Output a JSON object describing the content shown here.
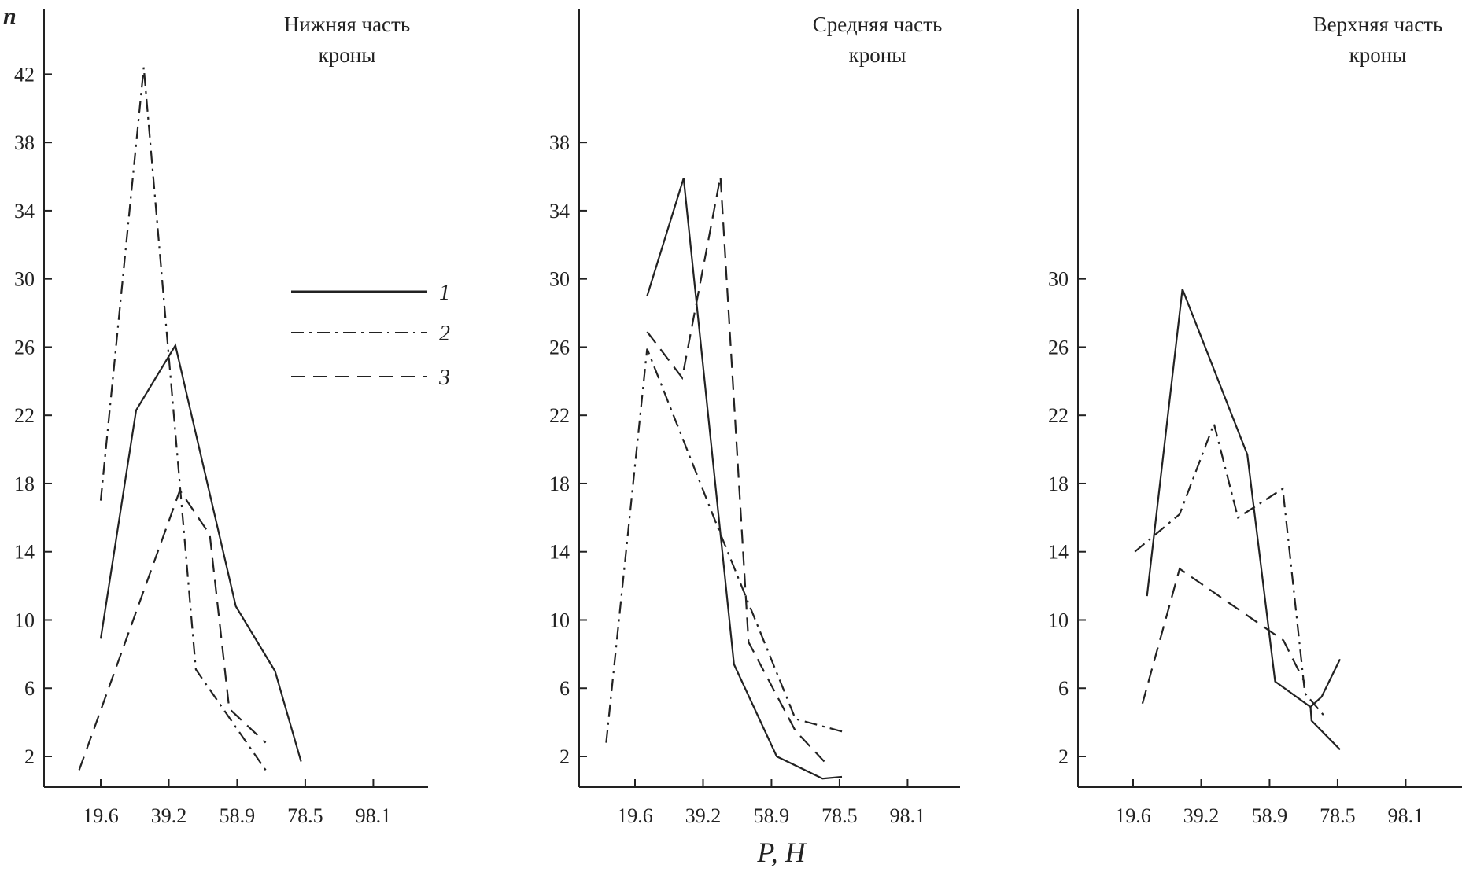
{
  "chart_data": {
    "type": "line",
    "ylabel": "n",
    "xlabel": "P, Н",
    "x_ticks": [
      "19.6",
      "39.2",
      "58.9",
      "78.5",
      "98.1"
    ],
    "x_tick_values": [
      19.6,
      39.2,
      58.9,
      78.5,
      98.1
    ],
    "legend": {
      "placement": "left panel, right-middle",
      "entries": [
        {
          "label": "1",
          "style": "solid"
        },
        {
          "label": "2",
          "style": "dash-dot"
        },
        {
          "label": "3",
          "style": "dashed"
        }
      ]
    },
    "panels": [
      {
        "title": [
          "Нижняя часть",
          "кроны"
        ],
        "y_ticks": [
          2,
          6,
          10,
          14,
          18,
          22,
          26,
          30,
          34,
          38,
          42
        ],
        "series": [
          {
            "name": "1",
            "style": "solid",
            "points": [
              [
                19.6,
                8.9
              ],
              [
                29.8,
                22.3
              ],
              [
                41.1,
                26.1
              ],
              [
                58.5,
                10.8
              ],
              [
                69.8,
                7.0
              ],
              [
                77.3,
                1.7
              ]
            ]
          },
          {
            "name": "2",
            "style": "dash-dot",
            "points": [
              [
                19.6,
                17.0
              ],
              [
                32.0,
                42.4
              ],
              [
                47.0,
                7.1
              ],
              [
                67.1,
                1.2
              ]
            ]
          },
          {
            "name": "3",
            "style": "dashed",
            "points": [
              [
                13.4,
                1.2
              ],
              [
                42.4,
                17.6
              ],
              [
                51.0,
                15.0
              ],
              [
                56.6,
                4.8
              ],
              [
                67.1,
                2.8
              ]
            ]
          }
        ]
      },
      {
        "title": [
          "Средняя часть",
          "кроны"
        ],
        "y_ticks": [
          2,
          6,
          10,
          14,
          18,
          22,
          26,
          30,
          34,
          38
        ],
        "series": [
          {
            "name": "1",
            "style": "solid",
            "points": [
              [
                23.1,
                29.0
              ],
              [
                33.6,
                35.9
              ],
              [
                48.1,
                7.4
              ],
              [
                60.4,
                2.0
              ],
              [
                73.6,
                0.7
              ],
              [
                79.2,
                0.8
              ]
            ]
          },
          {
            "name": "2",
            "style": "dash-dot",
            "points": [
              [
                11.3,
                2.8
              ],
              [
                23.1,
                25.9
              ],
              [
                43.5,
                15.4
              ],
              [
                65.8,
                4.2
              ],
              [
                80.3,
                3.4
              ]
            ]
          },
          {
            "name": "3",
            "style": "dashed",
            "points": [
              [
                23.1,
                26.9
              ],
              [
                33.2,
                24.2
              ],
              [
                44.2,
                36.0
              ],
              [
                52.3,
                8.7
              ],
              [
                65.8,
                3.5
              ],
              [
                74.1,
                1.7
              ]
            ]
          }
        ]
      },
      {
        "title": [
          "Верхняя часть",
          "кроны"
        ],
        "y_ticks": [
          2,
          6,
          10,
          14,
          18,
          22,
          26,
          30
        ],
        "series": [
          {
            "name": "1",
            "style": "solid",
            "points": [
              [
                23.6,
                11.4
              ],
              [
                33.8,
                29.4
              ],
              [
                52.5,
                19.7
              ],
              [
                60.5,
                6.4
              ],
              [
                70.7,
                4.9
              ],
              [
                71.0,
                4.1
              ],
              [
                79.2,
                2.4
              ]
            ]
          },
          {
            "name": "1",
            "style": "solid",
            "points": [
              [
                70.7,
                4.9
              ],
              [
                73.9,
                5.5
              ],
              [
                79.2,
                7.7
              ]
            ]
          },
          {
            "name": "2",
            "style": "dash-dot",
            "points": [
              [
                20.1,
                14.0
              ],
              [
                33.0,
                16.2
              ],
              [
                42.9,
                21.5
              ],
              [
                49.8,
                16.0
              ],
              [
                62.7,
                17.7
              ],
              [
                69.1,
                5.7
              ],
              [
                75.4,
                4.2
              ]
            ]
          },
          {
            "name": "3",
            "style": "dashed",
            "points": [
              [
                22.3,
                5.1
              ],
              [
                33.0,
                13.0
              ],
              [
                62.9,
                8.8
              ],
              [
                69.1,
                6.3
              ]
            ]
          }
        ]
      }
    ]
  }
}
